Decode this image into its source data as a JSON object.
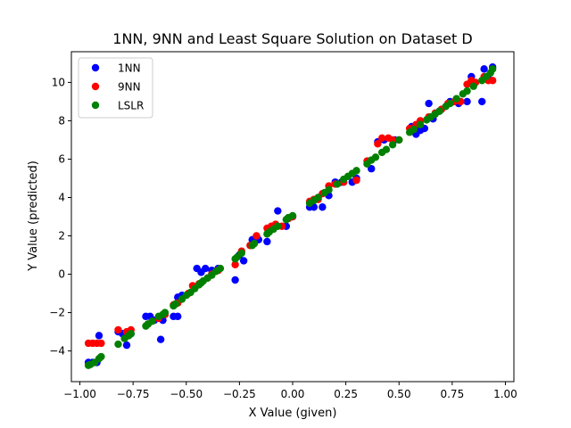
{
  "chart_data": {
    "type": "scatter",
    "title": "1NN, 9NN and Least Square Solution on Dataset D",
    "xlabel": "X Value (given)",
    "ylabel": "Y Value (predicted)",
    "xlim": [
      -1.04,
      1.04
    ],
    "ylim": [
      -5.6,
      11.6
    ],
    "xticks": [
      -1.0,
      -0.75,
      -0.5,
      -0.25,
      0.0,
      0.25,
      0.5,
      0.75,
      1.0
    ],
    "xtick_labels": [
      "−1.00",
      "−0.75",
      "−0.50",
      "−0.25",
      "0.00",
      "0.25",
      "0.50",
      "0.75",
      "1.00"
    ],
    "yticks": [
      -4,
      -2,
      0,
      2,
      4,
      6,
      8,
      10
    ],
    "ytick_labels": [
      "−4",
      "−2",
      "0",
      "2",
      "4",
      "6",
      "8",
      "10"
    ],
    "grid": false,
    "legend_position": "top-left",
    "series": [
      {
        "name": "1NN",
        "color": "#0000ff",
        "points": [
          [
            -0.96,
            -4.6
          ],
          [
            -0.94,
            -4.6
          ],
          [
            -0.92,
            -4.6
          ],
          [
            -0.91,
            -3.2
          ],
          [
            -0.82,
            -3.0
          ],
          [
            -0.8,
            -3.1
          ],
          [
            -0.78,
            -3.7
          ],
          [
            -0.76,
            -3.1
          ],
          [
            -0.69,
            -2.2
          ],
          [
            -0.67,
            -2.2
          ],
          [
            -0.65,
            -2.4
          ],
          [
            -0.62,
            -3.4
          ],
          [
            -0.61,
            -2.4
          ],
          [
            -0.56,
            -2.2
          ],
          [
            -0.54,
            -2.2
          ],
          [
            -0.54,
            -1.2
          ],
          [
            -0.52,
            -1.1
          ],
          [
            -0.45,
            0.3
          ],
          [
            -0.43,
            0.1
          ],
          [
            -0.41,
            0.3
          ],
          [
            -0.38,
            0.2
          ],
          [
            -0.35,
            0.3
          ],
          [
            -0.27,
            -0.3
          ],
          [
            -0.25,
            1.0
          ],
          [
            -0.23,
            0.7
          ],
          [
            -0.19,
            1.8
          ],
          [
            -0.16,
            1.8
          ],
          [
            -0.12,
            1.7
          ],
          [
            -0.07,
            3.3
          ],
          [
            -0.03,
            2.5
          ],
          [
            0.0,
            3.0
          ],
          [
            0.08,
            3.5
          ],
          [
            0.1,
            3.5
          ],
          [
            0.14,
            3.5
          ],
          [
            0.17,
            4.1
          ],
          [
            0.2,
            4.8
          ],
          [
            0.23,
            4.8
          ],
          [
            0.28,
            4.8
          ],
          [
            0.3,
            5.0
          ],
          [
            0.37,
            5.5
          ],
          [
            0.4,
            6.9
          ],
          [
            0.43,
            7.0
          ],
          [
            0.48,
            7.0
          ],
          [
            0.56,
            7.7
          ],
          [
            0.58,
            7.3
          ],
          [
            0.6,
            7.5
          ],
          [
            0.62,
            7.6
          ],
          [
            0.64,
            8.9
          ],
          [
            0.66,
            8.1
          ],
          [
            0.69,
            8.5
          ],
          [
            0.74,
            9.0
          ],
          [
            0.78,
            8.9
          ],
          [
            0.82,
            9.0
          ],
          [
            0.84,
            10.3
          ],
          [
            0.89,
            9.0
          ],
          [
            0.9,
            10.7
          ],
          [
            0.92,
            10.2
          ],
          [
            0.94,
            10.8
          ]
        ]
      },
      {
        "name": "9NN",
        "color": "#ff0000",
        "points": [
          [
            -0.96,
            -3.6
          ],
          [
            -0.94,
            -3.6
          ],
          [
            -0.92,
            -3.6
          ],
          [
            -0.9,
            -3.6
          ],
          [
            -0.82,
            -2.9
          ],
          [
            -0.78,
            -3.0
          ],
          [
            -0.76,
            -2.9
          ],
          [
            -0.68,
            -2.6
          ],
          [
            -0.63,
            -2.3
          ],
          [
            -0.6,
            -2.1
          ],
          [
            -0.56,
            -1.6
          ],
          [
            -0.54,
            -1.5
          ],
          [
            -0.49,
            -1.0
          ],
          [
            -0.47,
            -0.6
          ],
          [
            -0.44,
            -0.5
          ],
          [
            -0.4,
            -0.2
          ],
          [
            -0.38,
            0.0
          ],
          [
            -0.35,
            0.2
          ],
          [
            -0.27,
            0.5
          ],
          [
            -0.24,
            1.2
          ],
          [
            -0.2,
            1.5
          ],
          [
            -0.17,
            2.0
          ],
          [
            -0.12,
            2.4
          ],
          [
            -0.1,
            2.5
          ],
          [
            -0.08,
            2.6
          ],
          [
            -0.05,
            2.5
          ],
          [
            -0.02,
            2.9
          ],
          [
            0.0,
            3.0
          ],
          [
            0.08,
            3.8
          ],
          [
            0.1,
            3.9
          ],
          [
            0.12,
            3.9
          ],
          [
            0.14,
            4.2
          ],
          [
            0.17,
            4.6
          ],
          [
            0.2,
            4.7
          ],
          [
            0.24,
            4.8
          ],
          [
            0.3,
            4.9
          ],
          [
            0.35,
            5.9
          ],
          [
            0.4,
            6.8
          ],
          [
            0.42,
            7.1
          ],
          [
            0.45,
            7.1
          ],
          [
            0.47,
            7.0
          ],
          [
            0.5,
            7.0
          ],
          [
            0.55,
            7.6
          ],
          [
            0.58,
            7.8
          ],
          [
            0.6,
            8.0
          ],
          [
            0.64,
            8.2
          ],
          [
            0.67,
            8.4
          ],
          [
            0.7,
            8.6
          ],
          [
            0.73,
            8.9
          ],
          [
            0.76,
            9.0
          ],
          [
            0.79,
            9.0
          ],
          [
            0.82,
            9.9
          ],
          [
            0.84,
            10.1
          ],
          [
            0.86,
            10.0
          ],
          [
            0.9,
            10.3
          ],
          [
            0.92,
            10.1
          ],
          [
            0.94,
            10.1
          ]
        ]
      },
      {
        "name": "LSLR",
        "color": "#008000",
        "points": [
          [
            -0.96,
            -4.75
          ],
          [
            -0.95,
            -4.7
          ],
          [
            -0.93,
            -4.6
          ],
          [
            -0.91,
            -4.4
          ],
          [
            -0.9,
            -4.3
          ],
          [
            -0.82,
            -3.65
          ],
          [
            -0.79,
            -3.35
          ],
          [
            -0.77,
            -3.2
          ],
          [
            -0.76,
            -3.1
          ],
          [
            -0.69,
            -2.7
          ],
          [
            -0.68,
            -2.6
          ],
          [
            -0.66,
            -2.45
          ],
          [
            -0.63,
            -2.2
          ],
          [
            -0.61,
            -2.1
          ],
          [
            -0.6,
            -2.0
          ],
          [
            -0.56,
            -1.65
          ],
          [
            -0.55,
            -1.55
          ],
          [
            -0.52,
            -1.3
          ],
          [
            -0.5,
            -1.1
          ],
          [
            -0.48,
            -0.95
          ],
          [
            -0.46,
            -0.75
          ],
          [
            -0.44,
            -0.55
          ],
          [
            -0.43,
            -0.45
          ],
          [
            -0.42,
            -0.35
          ],
          [
            -0.4,
            -0.2
          ],
          [
            -0.38,
            -0.05
          ],
          [
            -0.36,
            0.15
          ],
          [
            -0.34,
            0.3
          ],
          [
            -0.27,
            0.8
          ],
          [
            -0.26,
            0.9
          ],
          [
            -0.24,
            1.1
          ],
          [
            -0.19,
            1.5
          ],
          [
            -0.18,
            1.6
          ],
          [
            -0.12,
            2.1
          ],
          [
            -0.11,
            2.2
          ],
          [
            -0.09,
            2.35
          ],
          [
            -0.07,
            2.5
          ],
          [
            -0.03,
            2.85
          ],
          [
            -0.02,
            2.95
          ],
          [
            0.0,
            3.05
          ],
          [
            0.08,
            3.7
          ],
          [
            0.1,
            3.85
          ],
          [
            0.12,
            4.0
          ],
          [
            0.15,
            4.25
          ],
          [
            0.17,
            4.4
          ],
          [
            0.21,
            4.7
          ],
          [
            0.24,
            4.95
          ],
          [
            0.26,
            5.1
          ],
          [
            0.28,
            5.25
          ],
          [
            0.3,
            5.4
          ],
          [
            0.35,
            5.75
          ],
          [
            0.37,
            5.95
          ],
          [
            0.39,
            6.1
          ],
          [
            0.42,
            6.35
          ],
          [
            0.44,
            6.5
          ],
          [
            0.47,
            6.75
          ],
          [
            0.5,
            7.0
          ],
          [
            0.55,
            7.4
          ],
          [
            0.57,
            7.55
          ],
          [
            0.6,
            7.8
          ],
          [
            0.63,
            8.05
          ],
          [
            0.65,
            8.2
          ],
          [
            0.67,
            8.35
          ],
          [
            0.69,
            8.5
          ],
          [
            0.72,
            8.75
          ],
          [
            0.74,
            8.9
          ],
          [
            0.77,
            9.15
          ],
          [
            0.8,
            9.4
          ],
          [
            0.82,
            9.55
          ],
          [
            0.85,
            9.8
          ],
          [
            0.89,
            10.1
          ],
          [
            0.91,
            10.3
          ],
          [
            0.93,
            10.5
          ],
          [
            0.94,
            10.7
          ]
        ]
      }
    ]
  }
}
